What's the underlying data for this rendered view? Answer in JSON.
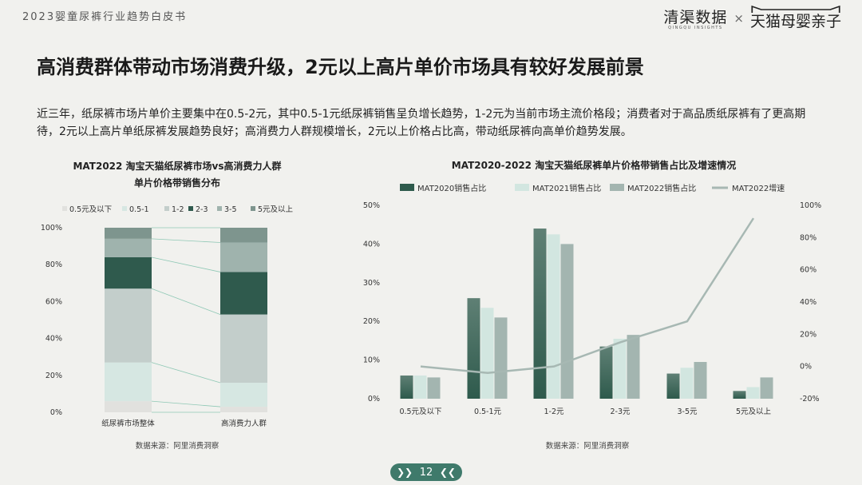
{
  "header": {
    "title": "2023婴童尿裤行业趋势白皮书"
  },
  "brand": {
    "qingqu": "清渠数据",
    "qingqu_sub": "QINGQU INSIGHTS",
    "separator": "×",
    "tmall": "天猫母婴亲子"
  },
  "main_title": "高消费群体带动市场消费升级，2元以上高片单价市场具有较好发展前景",
  "intro": "近三年，纸尿裤市场片单价主要集中在0.5-2元，其中0.5-1元纸尿裤销售呈负增长趋势，1-2元为当前市场主流价格段；消费者对于高品质纸尿裤有了更高期待，2元以上高片单纸尿裤发展趋势良好；高消费力人群规模增长，2元以上价格占比高，带动纸尿裤向高单价趋势发展。",
  "chart_data": [
    {
      "type": "bar",
      "stacked": true,
      "percent": true,
      "title": "MAT2022 淘宝天猫纸尿裤市场vs高消费力人群",
      "subtitle": "单片价格带销售分布",
      "categories": [
        "纸尿裤市场整体",
        "高消费力人群"
      ],
      "series": [
        {
          "name": "0.5元及以下",
          "color": "#e1e1de",
          "values": [
            6,
            3
          ]
        },
        {
          "name": "0.5-1",
          "color": "#d6e7e2",
          "values": [
            21,
            13
          ]
        },
        {
          "name": "1-2",
          "color": "#c3cecb",
          "values": [
            40,
            37
          ]
        },
        {
          "name": "2-3",
          "color": "#2f5a4d",
          "values": [
            17,
            23
          ]
        },
        {
          "name": "3-5",
          "color": "#9fb3ad",
          "values": [
            10,
            16
          ]
        },
        {
          "name": "5元及以上",
          "color": "#7e958e",
          "values": [
            6,
            8
          ]
        }
      ],
      "yticks": [
        "0%",
        "20%",
        "40%",
        "60%",
        "80%",
        "100%"
      ],
      "ylim": [
        0,
        100
      ],
      "legend_position": "top",
      "source": "数据来源：阿里消费洞察"
    },
    {
      "type": "bar",
      "title": "MAT2020-2022 淘宝天猫纸尿裤单片价格带销售占比及增速情况",
      "categories": [
        "0.5元及以下",
        "0.5-1元",
        "1-2元",
        "2-3元",
        "3-5元",
        "5元及以上"
      ],
      "series": [
        {
          "name": "MAT2020销售占比",
          "type": "bar",
          "color": "#2e5a4c",
          "values": [
            6,
            26,
            44,
            13.5,
            6.5,
            2
          ]
        },
        {
          "name": "MAT2021销售占比",
          "type": "bar",
          "color": "#d2e6e0",
          "values": [
            6,
            23.5,
            42.5,
            15.5,
            8,
            3
          ]
        },
        {
          "name": "MAT2022销售占比",
          "type": "bar",
          "color": "#a3b5b0",
          "values": [
            5.5,
            21,
            40,
            16.5,
            9.5,
            5.5
          ]
        },
        {
          "name": "MAT2022增速",
          "type": "line",
          "axis": "right",
          "color": "#a7b8b3",
          "values": [
            0,
            -4,
            0,
            15,
            28,
            92
          ]
        }
      ],
      "yticks_left": [
        "0%",
        "10%",
        "20%",
        "30%",
        "40%",
        "50%"
      ],
      "yticks_right": [
        "-20%",
        "0%",
        "20%",
        "40%",
        "60%",
        "80%",
        "100%"
      ],
      "ylim_left": [
        0,
        50
      ],
      "ylim_right": [
        -20,
        100
      ],
      "legend_position": "top",
      "source": "数据来源：阿里消费洞察"
    }
  ],
  "pagination": {
    "prev_icon": "chevron-double-left-icon",
    "next_icon": "chevron-double-right-icon",
    "page": "12"
  }
}
